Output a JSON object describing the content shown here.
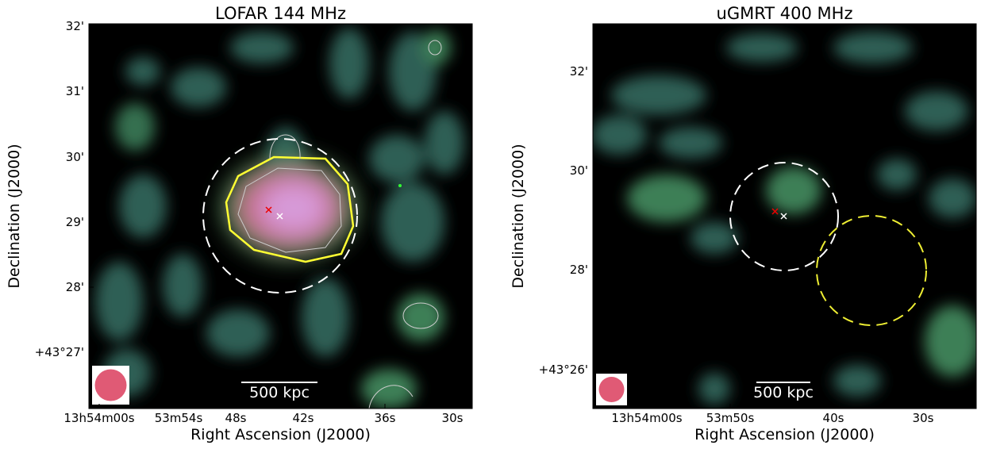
{
  "panels": [
    {
      "title": "LOFAR 144 MHz",
      "x_label": "Right Ascension (J2000)",
      "y_label": "Declination (J2000)",
      "x_ticks": [
        "13h54m00s",
        "53m54s",
        "48s",
        "42s",
        "36s",
        "30s"
      ],
      "y_ticks": [
        "32'",
        "31'",
        "30'",
        "29'",
        "28'",
        "+43°27'"
      ],
      "scalebar": "500 kpc"
    },
    {
      "title": "uGMRT 400 MHz",
      "x_label": "Right Ascension (J2000)",
      "y_label": "Declination (J2000)",
      "x_ticks": [
        "13h54m00s",
        "53m50s",
        "40s",
        "30s"
      ],
      "y_ticks": [
        "32'",
        "30'",
        "28'",
        "+43°26'"
      ],
      "scalebar": "500 kpc"
    }
  ]
}
